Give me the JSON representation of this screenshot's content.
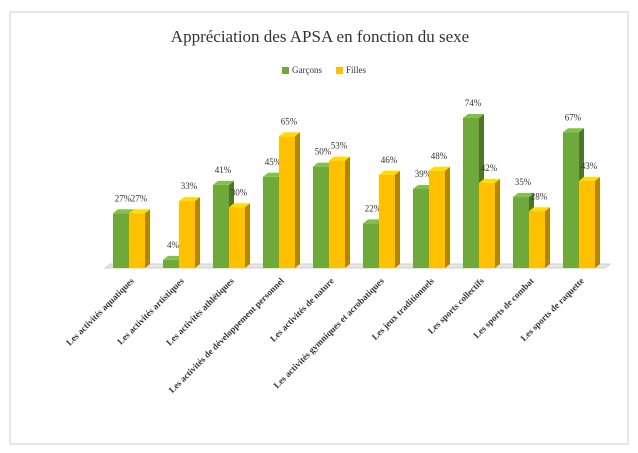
{
  "chart_data": {
    "type": "bar3d",
    "title": "Appréciation des APSA en fonction du sexe",
    "categories": [
      "Les activités aquatiques",
      "Les activités artistiques",
      "Les activités athlétiques",
      "Les activités de développement personnel",
      "Les activités de nature",
      "Les activités gymniques et acrobatiques",
      "Les jeux traditionnels",
      "Les sports collectifs",
      "Les sports de combat",
      "Les sports de raquette"
    ],
    "series": [
      {
        "name": "Garçons",
        "color": "#6fa93c",
        "values": [
          27,
          4,
          41,
          45,
          50,
          22,
          39,
          74,
          35,
          67
        ],
        "value_labels": [
          "27%",
          "4%",
          "41%",
          "45%",
          "50%",
          "22%",
          "39%",
          "74%",
          "35%",
          "67%"
        ]
      },
      {
        "name": "Filles",
        "color": "#ffc000",
        "values": [
          27,
          33,
          30,
          65,
          53,
          46,
          48,
          42,
          28,
          43
        ],
        "value_labels": [
          "27%",
          "33%",
          "30%",
          "65%",
          "53%",
          "46%",
          "48%",
          "42%",
          "28%",
          "43%"
        ]
      }
    ],
    "legend": "top"
  }
}
